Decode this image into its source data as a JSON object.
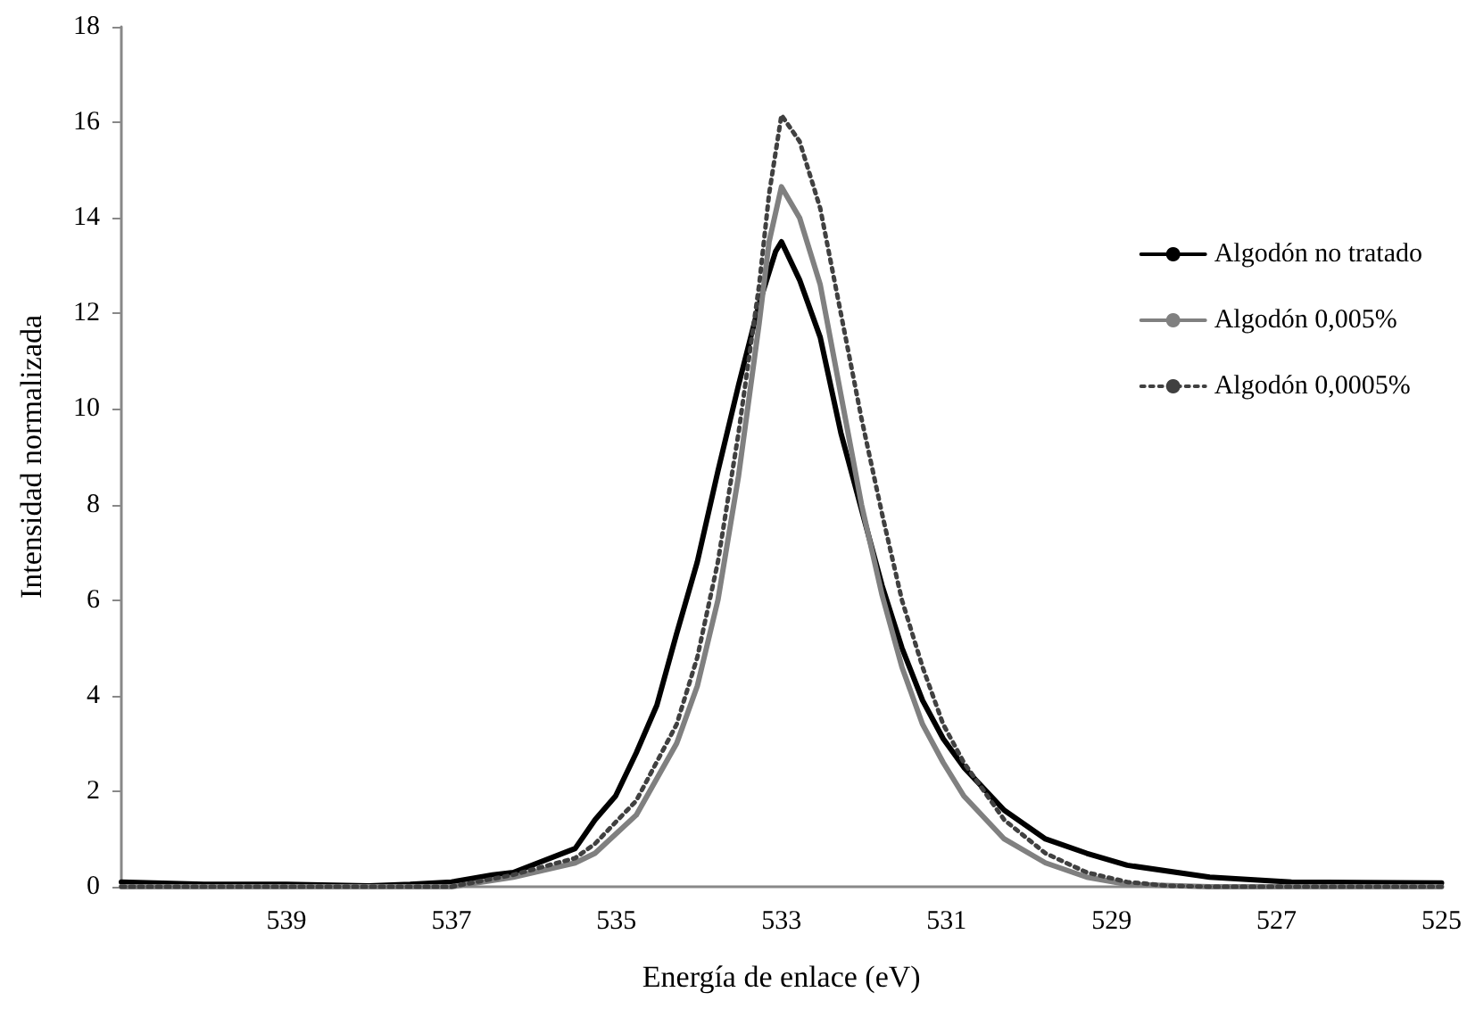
{
  "chart_data": {
    "type": "line",
    "xlabel": "Energía de enlace (eV)",
    "ylabel": "Intensidad normalizada",
    "xlim": [
      541,
      525
    ],
    "xticks": [
      539,
      537,
      535,
      533,
      531,
      529,
      527,
      525
    ],
    "ylim": [
      0,
      18
    ],
    "yticks": [
      0,
      2,
      4,
      6,
      8,
      10,
      12,
      14,
      16,
      18
    ],
    "grid": false,
    "legend": "right",
    "marker": "none",
    "series": [
      {
        "name": "Algodón no tratado",
        "color": "#000000",
        "line_style": "solid",
        "x": [
          541,
          540,
          539,
          538,
          537.5,
          537,
          536.5,
          536.25,
          535.5,
          535.26,
          535.01,
          534.76,
          534.51,
          534.27,
          534.02,
          533.77,
          533.52,
          533.27,
          533.07,
          533.0,
          532.78,
          532.53,
          532.28,
          532.03,
          531.78,
          531.54,
          531.29,
          531.04,
          530.79,
          530.3,
          529.8,
          529.3,
          528.81,
          527.81,
          526.82,
          525
        ],
        "values": [
          0.1,
          0.05,
          0.05,
          0.02,
          0.05,
          0.1,
          0.25,
          0.3,
          0.8,
          1.4,
          1.9,
          2.8,
          3.8,
          5.3,
          6.8,
          8.7,
          10.5,
          12.2,
          13.3,
          13.5,
          12.7,
          11.5,
          9.5,
          7.9,
          6.3,
          5.0,
          3.9,
          3.1,
          2.5,
          1.6,
          1.0,
          0.7,
          0.45,
          0.2,
          0.1,
          0.08
        ]
      },
      {
        "name": "Algodón 0,005%",
        "color": "#808080",
        "line_style": "solid",
        "x": [
          541,
          537,
          536.25,
          535.5,
          535.26,
          534.76,
          534.27,
          534.02,
          533.77,
          533.52,
          533.27,
          533.15,
          533.0,
          532.78,
          532.53,
          532.28,
          532.03,
          531.78,
          531.54,
          531.29,
          531.04,
          530.79,
          530.3,
          529.8,
          529.3,
          528.81,
          527.81,
          525
        ],
        "values": [
          0,
          0,
          0.2,
          0.5,
          0.7,
          1.5,
          3.0,
          4.2,
          6.0,
          8.6,
          11.8,
          13.5,
          14.65,
          14.0,
          12.6,
          10.3,
          8.0,
          6.1,
          4.6,
          3.4,
          2.6,
          1.9,
          1.0,
          0.5,
          0.2,
          0.05,
          0,
          0
        ]
      },
      {
        "name": "Algodón 0,0005%",
        "color": "#404040",
        "line_style": "dotted",
        "x": [
          541,
          537,
          536.25,
          535.5,
          535.26,
          534.76,
          534.27,
          534.02,
          533.77,
          533.52,
          533.27,
          533.15,
          533.0,
          532.78,
          532.53,
          532.28,
          532.03,
          531.78,
          531.54,
          531.29,
          531.04,
          530.79,
          530.3,
          529.8,
          529.3,
          528.81,
          528.31,
          527.81,
          525
        ],
        "values": [
          0,
          0,
          0.25,
          0.6,
          0.9,
          1.8,
          3.4,
          4.8,
          6.8,
          9.5,
          12.6,
          14.5,
          16.15,
          15.6,
          14.2,
          12.0,
          9.8,
          7.8,
          6.0,
          4.6,
          3.4,
          2.6,
          1.4,
          0.7,
          0.3,
          0.1,
          0.02,
          0,
          0
        ]
      }
    ]
  }
}
